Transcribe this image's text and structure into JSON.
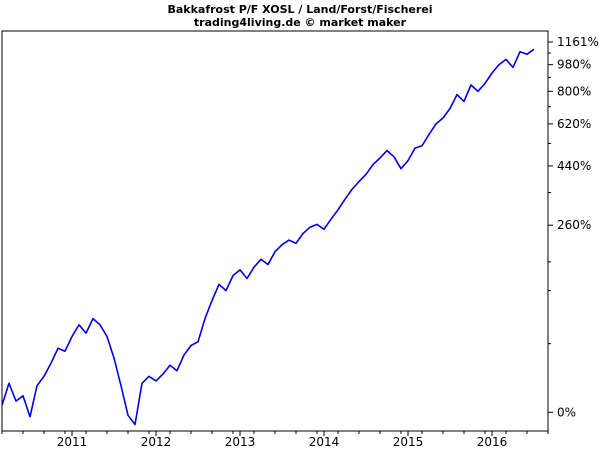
{
  "chart_data": {
    "type": "line",
    "title": "Bakkafrost P/F XOSL / Land/Forst/Fischerei",
    "subtitle": "trading4living.de © market maker",
    "xlabel": "",
    "ylabel": "",
    "y_scale": "log",
    "grid": false,
    "x_tick_labels": [
      "2011",
      "2012",
      "2013",
      "2014",
      "2015",
      "2016"
    ],
    "y_tick_labels": [
      "0%",
      "260%",
      "440%",
      "620%",
      "800%",
      "980%",
      "1161%"
    ],
    "y_tick_values": [
      0,
      260,
      440,
      620,
      800,
      980,
      1161
    ],
    "xlim": [
      "2010-03",
      "2016-09"
    ],
    "ylim": [
      -12,
      1260
    ],
    "colors": {
      "line": "#0000e6",
      "axis": "#000000",
      "background": "#ffffff"
    },
    "series": [
      {
        "values": [
          [
            "2010-03",
            5
          ],
          [
            "2010-04",
            22
          ],
          [
            "2010-05",
            8
          ],
          [
            "2010-06",
            12
          ],
          [
            "2010-07",
            -3
          ],
          [
            "2010-08",
            20
          ],
          [
            "2010-09",
            28
          ],
          [
            "2010-10",
            40
          ],
          [
            "2010-11",
            55
          ],
          [
            "2010-12",
            52
          ],
          [
            "2011-01",
            68
          ],
          [
            "2011-02",
            82
          ],
          [
            "2011-03",
            72
          ],
          [
            "2011-04",
            90
          ],
          [
            "2011-05",
            82
          ],
          [
            "2011-06",
            68
          ],
          [
            "2011-07",
            45
          ],
          [
            "2011-08",
            20
          ],
          [
            "2011-09",
            -2
          ],
          [
            "2011-10",
            -8
          ],
          [
            "2011-11",
            22
          ],
          [
            "2011-12",
            28
          ],
          [
            "2012-01",
            24
          ],
          [
            "2012-02",
            30
          ],
          [
            "2012-03",
            38
          ],
          [
            "2012-04",
            33
          ],
          [
            "2012-05",
            48
          ],
          [
            "2012-06",
            58
          ],
          [
            "2012-07",
            62
          ],
          [
            "2012-08",
            90
          ],
          [
            "2012-09",
            115
          ],
          [
            "2012-10",
            140
          ],
          [
            "2012-11",
            130
          ],
          [
            "2012-12",
            155
          ],
          [
            "2013-01",
            165
          ],
          [
            "2013-02",
            150
          ],
          [
            "2013-03",
            170
          ],
          [
            "2013-04",
            185
          ],
          [
            "2013-05",
            175
          ],
          [
            "2013-06",
            200
          ],
          [
            "2013-07",
            215
          ],
          [
            "2013-08",
            225
          ],
          [
            "2013-09",
            218
          ],
          [
            "2013-10",
            240
          ],
          [
            "2013-11",
            255
          ],
          [
            "2013-12",
            262
          ],
          [
            "2014-01",
            250
          ],
          [
            "2014-02",
            275
          ],
          [
            "2014-03",
            300
          ],
          [
            "2014-04",
            330
          ],
          [
            "2014-05",
            360
          ],
          [
            "2014-06",
            385
          ],
          [
            "2014-07",
            410
          ],
          [
            "2014-08",
            445
          ],
          [
            "2014-09",
            470
          ],
          [
            "2014-10",
            500
          ],
          [
            "2014-11",
            475
          ],
          [
            "2014-12",
            430
          ],
          [
            "2015-01",
            460
          ],
          [
            "2015-02",
            510
          ],
          [
            "2015-03",
            520
          ],
          [
            "2015-04",
            570
          ],
          [
            "2015-05",
            620
          ],
          [
            "2015-06",
            650
          ],
          [
            "2015-07",
            700
          ],
          [
            "2015-08",
            780
          ],
          [
            "2015-09",
            740
          ],
          [
            "2015-10",
            840
          ],
          [
            "2015-11",
            800
          ],
          [
            "2015-12",
            850
          ],
          [
            "2016-01",
            920
          ],
          [
            "2016-02",
            980
          ],
          [
            "2016-03",
            1020
          ],
          [
            "2016-04",
            960
          ],
          [
            "2016-05",
            1080
          ],
          [
            "2016-06",
            1060
          ],
          [
            "2016-07",
            1100
          ]
        ]
      }
    ]
  }
}
